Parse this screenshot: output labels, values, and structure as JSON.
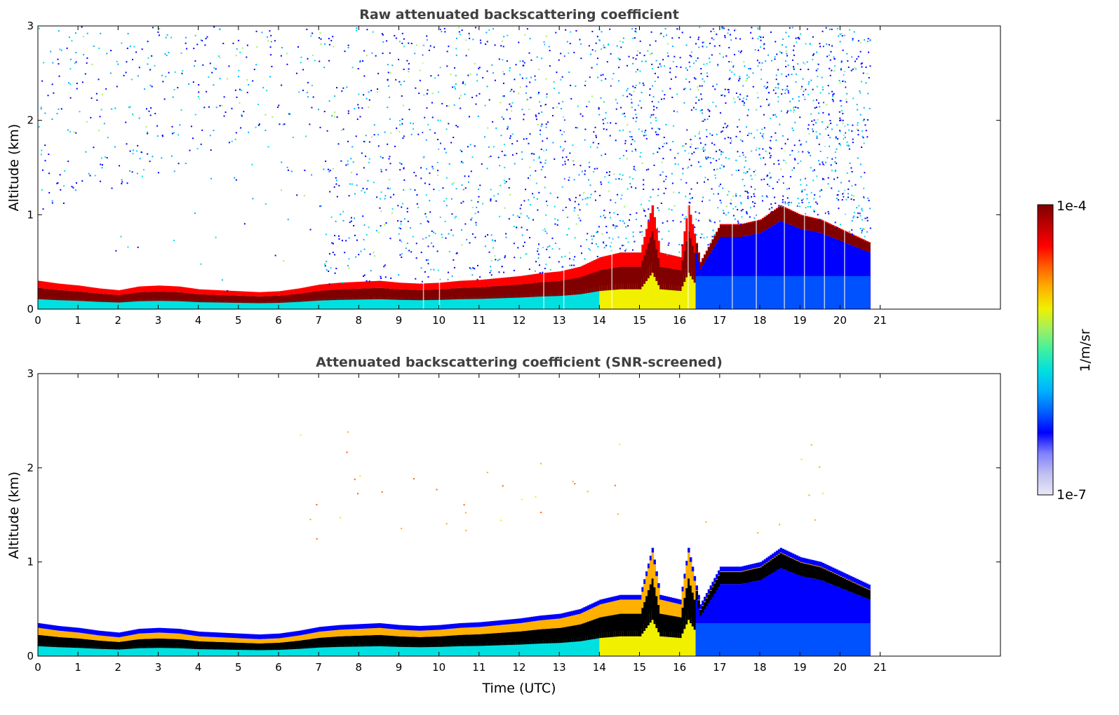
{
  "colors": {
    "jet": [
      "#e8e8f8",
      "#c0c0f0",
      "#8080ff",
      "#0000ff",
      "#0060ff",
      "#00b0ff",
      "#00e0e0",
      "#40f0a0",
      "#a0f060",
      "#f0f000",
      "#ffb000",
      "#ff6000",
      "#ff0000",
      "#c00000",
      "#800000"
    ],
    "black": "#000000"
  },
  "colorbar": {
    "label": "1/m/sr",
    "max_label": "1e-4",
    "min_label": "1e-7"
  },
  "chart_data": [
    {
      "type": "heatmap",
      "title": "Raw attenuated backscattering coefficient",
      "xlabel": "",
      "ylabel": "Altitude (km)",
      "xlim": [
        0,
        24
      ],
      "ylim": [
        0,
        3
      ],
      "xticks": [
        "0",
        "1",
        "2",
        "3",
        "4",
        "5",
        "6",
        "7",
        "8",
        "9",
        "10",
        "11",
        "12",
        "13",
        "14",
        "15",
        "16",
        "17",
        "18",
        "19",
        "20",
        "21"
      ],
      "yticks": [
        "0",
        "1",
        "2",
        "3"
      ],
      "data_end_hour": 20.75,
      "layer_top_km": [
        [
          0,
          0.3
        ],
        [
          0.5,
          0.27
        ],
        [
          1,
          0.25
        ],
        [
          1.5,
          0.22
        ],
        [
          2,
          0.2
        ],
        [
          2.5,
          0.24
        ],
        [
          3,
          0.25
        ],
        [
          3.5,
          0.24
        ],
        [
          4,
          0.21
        ],
        [
          4.5,
          0.2
        ],
        [
          5,
          0.19
        ],
        [
          5.5,
          0.18
        ],
        [
          6,
          0.19
        ],
        [
          6.5,
          0.22
        ],
        [
          7,
          0.26
        ],
        [
          7.5,
          0.28
        ],
        [
          8,
          0.29
        ],
        [
          8.5,
          0.3
        ],
        [
          9,
          0.28
        ],
        [
          9.5,
          0.27
        ],
        [
          10,
          0.28
        ],
        [
          10.5,
          0.3
        ],
        [
          11,
          0.31
        ],
        [
          11.5,
          0.33
        ],
        [
          12,
          0.35
        ],
        [
          12.5,
          0.38
        ],
        [
          13,
          0.4
        ],
        [
          13.5,
          0.45
        ],
        [
          14,
          0.55
        ],
        [
          14.5,
          0.6
        ],
        [
          15,
          0.6
        ],
        [
          15.3,
          1.1
        ],
        [
          15.5,
          0.6
        ],
        [
          16,
          0.55
        ],
        [
          16.2,
          1.1
        ],
        [
          16.5,
          0.5
        ],
        [
          17,
          0.9
        ],
        [
          17.5,
          0.9
        ],
        [
          18,
          0.95
        ],
        [
          18.5,
          1.1
        ],
        [
          19,
          1.0
        ],
        [
          19.5,
          0.95
        ],
        [
          20,
          0.85
        ],
        [
          20.75,
          0.7
        ]
      ]
    },
    {
      "type": "heatmap",
      "title": "Attenuated backscattering coefficient (SNR-screened)",
      "xlabel": "Time (UTC)",
      "ylabel": "Altitude (km)",
      "xlim": [
        0,
        24
      ],
      "ylim": [
        0,
        3
      ],
      "xticks": [
        "0",
        "1",
        "2",
        "3",
        "4",
        "5",
        "6",
        "7",
        "8",
        "9",
        "10",
        "11",
        "12",
        "13",
        "14",
        "15",
        "16",
        "17",
        "18",
        "19",
        "20",
        "21"
      ],
      "yticks": [
        "0",
        "1",
        "2",
        "3"
      ],
      "data_end_hour": 20.75,
      "layer_top_km": [
        [
          0,
          0.3
        ],
        [
          0.5,
          0.27
        ],
        [
          1,
          0.25
        ],
        [
          1.5,
          0.22
        ],
        [
          2,
          0.2
        ],
        [
          2.5,
          0.24
        ],
        [
          3,
          0.25
        ],
        [
          3.5,
          0.24
        ],
        [
          4,
          0.21
        ],
        [
          4.5,
          0.2
        ],
        [
          5,
          0.19
        ],
        [
          5.5,
          0.18
        ],
        [
          6,
          0.19
        ],
        [
          6.5,
          0.22
        ],
        [
          7,
          0.26
        ],
        [
          7.5,
          0.28
        ],
        [
          8,
          0.29
        ],
        [
          8.5,
          0.3
        ],
        [
          9,
          0.28
        ],
        [
          9.5,
          0.27
        ],
        [
          10,
          0.28
        ],
        [
          10.5,
          0.3
        ],
        [
          11,
          0.31
        ],
        [
          11.5,
          0.33
        ],
        [
          12,
          0.35
        ],
        [
          12.5,
          0.38
        ],
        [
          13,
          0.4
        ],
        [
          13.5,
          0.45
        ],
        [
          14,
          0.55
        ],
        [
          14.5,
          0.6
        ],
        [
          15,
          0.6
        ],
        [
          15.3,
          1.1
        ],
        [
          15.5,
          0.6
        ],
        [
          16,
          0.55
        ],
        [
          16.2,
          1.1
        ],
        [
          16.5,
          0.5
        ],
        [
          17,
          0.9
        ],
        [
          17.5,
          0.9
        ],
        [
          18,
          0.95
        ],
        [
          18.5,
          1.1
        ],
        [
          19,
          1.0
        ],
        [
          19.5,
          0.95
        ],
        [
          20,
          0.85
        ],
        [
          20.75,
          0.7
        ]
      ]
    }
  ]
}
